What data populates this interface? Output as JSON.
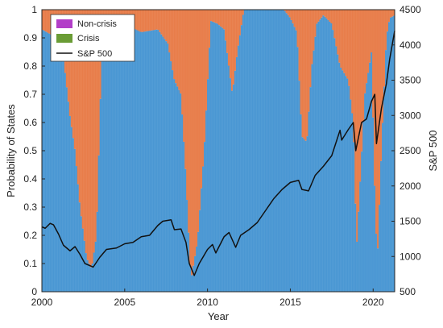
{
  "chart_data": {
    "type": "area",
    "title": "",
    "xlabel": "Year",
    "ylabel": "Probability of States",
    "y2label": "S&P 500",
    "xlim": [
      2000,
      2021.3
    ],
    "ylim": [
      0,
      1
    ],
    "y2lim": [
      500,
      4500
    ],
    "x_ticks": [
      2000,
      2005,
      2010,
      2015,
      2020
    ],
    "y_ticks": [
      0,
      0.1,
      0.2,
      0.3,
      0.4,
      0.5,
      0.6,
      0.7,
      0.8,
      0.9,
      1
    ],
    "y2_ticks": [
      500,
      1000,
      1500,
      2000,
      2500,
      3000,
      3500,
      4000,
      4500
    ],
    "legend_position": "top-left",
    "grid": false,
    "legend": [
      "Non-crisis",
      "Crisis",
      "S&P 500"
    ],
    "colors": {
      "non_crisis": "#4a97d3",
      "crisis": "#e87d4a",
      "sp500": "#111111",
      "legend_non_crisis": "#b23ec8",
      "legend_crisis": "#6a9c35"
    },
    "non_crisis_probability": {
      "x": [
        2000.0,
        2000.6,
        2001.0,
        2001.3,
        2001.7,
        2002.0,
        2002.3,
        2002.7,
        2003.0,
        2003.3,
        2003.6,
        2004.0,
        2005.0,
        2006.0,
        2007.0,
        2007.6,
        2008.0,
        2008.4,
        2008.7,
        2009.0,
        2009.4,
        2009.8,
        2010.2,
        2010.6,
        2011.0,
        2011.5,
        2011.8,
        2012.2,
        2013.0,
        2014.0,
        2014.6,
        2015.0,
        2015.4,
        2015.7,
        2016.0,
        2016.3,
        2016.6,
        2017.0,
        2017.5,
        2018.0,
        2018.5,
        2018.8,
        2019.0,
        2019.5,
        2019.9,
        2020.1,
        2020.25,
        2020.5,
        2020.8,
        2021.0,
        2021.3
      ],
      "y": [
        0.93,
        0.91,
        0.85,
        0.83,
        0.62,
        0.5,
        0.3,
        0.12,
        0.08,
        0.2,
        0.82,
        0.95,
        0.95,
        0.92,
        0.93,
        0.88,
        0.75,
        0.7,
        0.4,
        0.04,
        0.18,
        0.5,
        0.96,
        0.95,
        0.93,
        0.7,
        0.85,
        1.0,
        1.0,
        1.0,
        1.0,
        0.97,
        0.92,
        0.55,
        0.53,
        0.8,
        0.95,
        0.98,
        0.95,
        0.8,
        0.75,
        0.6,
        0.15,
        0.7,
        0.85,
        0.35,
        0.1,
        0.5,
        0.9,
        0.97,
        0.98
      ]
    },
    "sp500": {
      "x": [
        2000.0,
        2000.2,
        2000.5,
        2000.7,
        2001.0,
        2001.3,
        2001.7,
        2002.0,
        2002.3,
        2002.6,
        2002.8,
        2003.1,
        2003.5,
        2003.9,
        2004.5,
        2005.0,
        2005.5,
        2006.0,
        2006.5,
        2007.0,
        2007.3,
        2007.8,
        2008.0,
        2008.4,
        2008.7,
        2008.9,
        2009.2,
        2009.5,
        2010.0,
        2010.3,
        2010.5,
        2011.0,
        2011.3,
        2011.7,
        2012.0,
        2012.5,
        2013.0,
        2013.5,
        2014.0,
        2014.5,
        2015.0,
        2015.5,
        2015.7,
        2016.1,
        2016.5,
        2017.0,
        2017.5,
        2018.0,
        2018.1,
        2018.5,
        2018.8,
        2018.95,
        2019.3,
        2019.6,
        2019.9,
        2020.1,
        2020.2,
        2020.5,
        2020.8,
        2021.0,
        2021.3
      ],
      "y": [
        1420,
        1400,
        1470,
        1450,
        1320,
        1160,
        1080,
        1140,
        1030,
        900,
        880,
        850,
        990,
        1100,
        1120,
        1180,
        1200,
        1280,
        1300,
        1440,
        1500,
        1520,
        1380,
        1390,
        1200,
        900,
        730,
        900,
        1100,
        1170,
        1050,
        1280,
        1340,
        1130,
        1300,
        1380,
        1480,
        1650,
        1820,
        1950,
        2050,
        2080,
        1950,
        1930,
        2150,
        2280,
        2430,
        2790,
        2650,
        2800,
        2900,
        2500,
        2900,
        2950,
        3200,
        3300,
        2600,
        3100,
        3450,
        3800,
        4200
      ]
    }
  }
}
